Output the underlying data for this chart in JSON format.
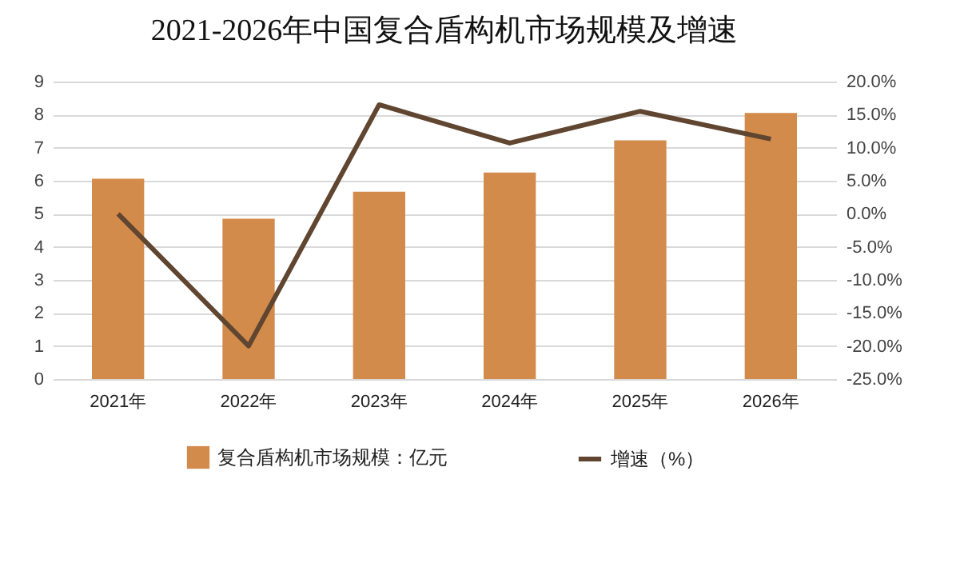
{
  "chart_data": {
    "type": "bar",
    "title": "2021-2026年中国复合盾构机市场规模及增速",
    "categories": [
      "2021年",
      "2022年",
      "2023年",
      "2024年",
      "2025年",
      "2026年"
    ],
    "series": [
      {
        "name": "复合盾构机市场规模：亿元",
        "color": "#d38b4c",
        "values": [
          6.06,
          4.85,
          5.67,
          6.25,
          7.22,
          8.05
        ]
      },
      {
        "name": "增速（%）",
        "type": "line",
        "axis": "y2",
        "color": "#604630",
        "values": [
          0,
          -20,
          16.5,
          10.7,
          15.5,
          11.3
        ]
      }
    ],
    "ylim": [
      0,
      9
    ],
    "yticks": [
      0,
      1,
      2,
      3,
      4,
      5,
      6,
      7,
      8,
      9
    ],
    "y2lim": [
      -25,
      20
    ],
    "y2ticks": [
      {
        "value": -25,
        "label": "-25.0%"
      },
      {
        "value": -20,
        "label": "-20.0%"
      },
      {
        "value": -15,
        "label": "-15.0%"
      },
      {
        "value": -10,
        "label": "-10.0%"
      },
      {
        "value": -5,
        "label": "-5.0%"
      },
      {
        "value": 0,
        "label": "0.0%"
      },
      {
        "value": 5,
        "label": "5.0%"
      },
      {
        "value": 10,
        "label": "10.0%"
      },
      {
        "value": 15,
        "label": "15.0%"
      },
      {
        "value": 20,
        "label": "20.0%"
      }
    ],
    "grid": "y",
    "legend": "bottom",
    "marker": "none",
    "line_style": "solid"
  }
}
